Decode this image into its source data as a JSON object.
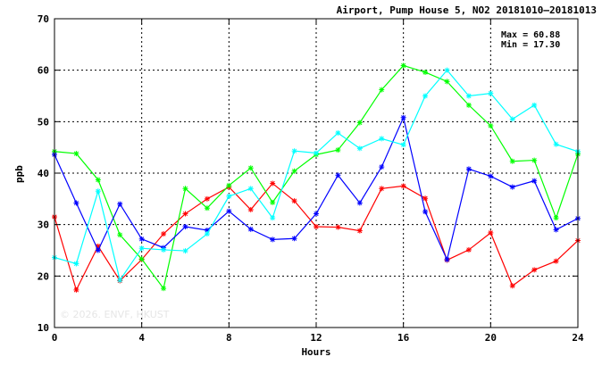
{
  "chart_data": {
    "type": "line",
    "title": "Airport, Pump House 5, NO2 20181010–20181013",
    "xlabel": "Hours",
    "ylabel": "ppb",
    "xlim": [
      0,
      24
    ],
    "ylim": [
      10,
      70
    ],
    "xticks": [
      0,
      4,
      8,
      12,
      16,
      20,
      24
    ],
    "yticks": [
      10,
      20,
      30,
      40,
      50,
      60,
      70
    ],
    "grid": true,
    "annotations": [
      "Max = 60.88",
      "Min = 17.30"
    ],
    "watermark": "© 2026. ENVF, HKUST",
    "x": [
      0,
      1,
      2,
      3,
      4,
      5,
      6,
      7,
      8,
      9,
      10,
      11,
      12,
      13,
      14,
      15,
      16,
      17,
      18,
      19,
      20,
      21,
      22,
      23,
      24
    ],
    "series": [
      {
        "color": "#ff0000",
        "values": [
          31.5,
          17.3,
          25.8,
          19.1,
          23.2,
          28.2,
          32.1,
          35.0,
          37.3,
          32.9,
          38.0,
          34.6,
          29.6,
          29.5,
          28.8,
          37.0,
          37.5,
          35.1,
          23.1,
          25.1,
          28.4,
          18.1,
          21.2,
          22.9,
          26.9
        ]
      },
      {
        "color": "#00ff00",
        "values": [
          44.2,
          43.8,
          38.7,
          28.0,
          23.3,
          17.6,
          37.0,
          33.2,
          37.6,
          41.0,
          34.3,
          40.4,
          43.6,
          44.5,
          49.8,
          56.2,
          60.9,
          59.6,
          57.8,
          53.2,
          49.2,
          42.3,
          42.5,
          31.3,
          43.7
        ]
      },
      {
        "color": "#0000ff",
        "values": [
          43.6,
          34.2,
          25.0,
          34.0,
          27.2,
          25.5,
          29.6,
          28.9,
          32.6,
          29.1,
          27.1,
          27.3,
          32.1,
          39.6,
          34.2,
          41.2,
          50.8,
          32.5,
          23.2,
          40.8,
          39.4,
          37.3,
          38.5,
          29.0,
          31.2
        ]
      },
      {
        "color": "#00ffff",
        "values": [
          23.6,
          22.4,
          36.5,
          19.2,
          25.4,
          25.1,
          24.9,
          28.2,
          35.5,
          37.0,
          31.3,
          44.3,
          43.9,
          47.8,
          44.8,
          46.7,
          45.5,
          55.0,
          60.0,
          55.0,
          55.5,
          50.5,
          53.2,
          45.6,
          44.2
        ]
      }
    ]
  }
}
